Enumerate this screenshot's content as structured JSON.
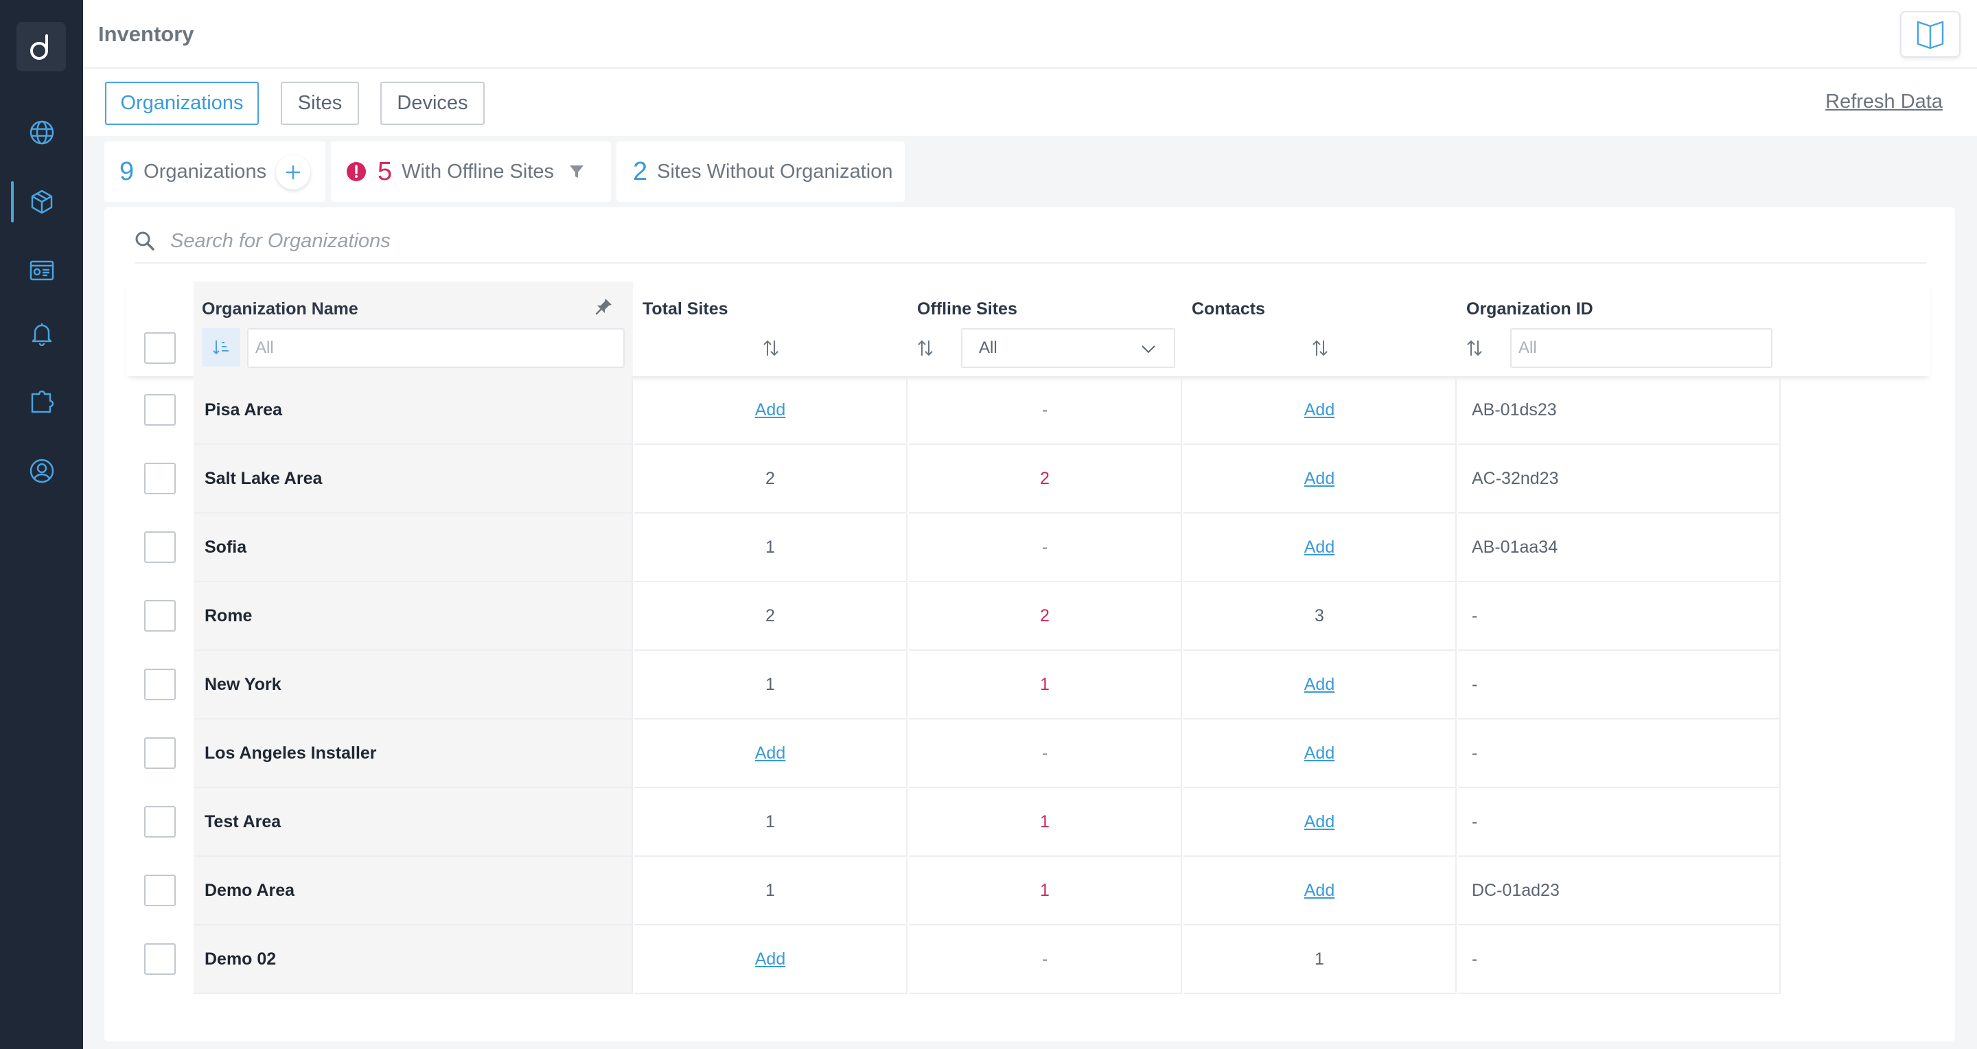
{
  "app": {
    "title": "Inventory",
    "logo_icon": "dashboard-logo-icon"
  },
  "sidebar": {
    "items": [
      {
        "name": "globe",
        "icon": "globe-icon"
      },
      {
        "name": "inventory",
        "icon": "cube-icon",
        "active": true
      },
      {
        "name": "reports",
        "icon": "report-card-icon"
      },
      {
        "name": "alerts",
        "icon": "bell-icon"
      },
      {
        "name": "integrations",
        "icon": "puzzle-icon"
      },
      {
        "name": "profile",
        "icon": "user-icon"
      }
    ]
  },
  "tabs": {
    "organizations": "Organizations",
    "sites": "Sites",
    "devices": "Devices",
    "active": "Organizations"
  },
  "refresh_label": "Refresh Data",
  "stats": {
    "organizations": {
      "count": "9",
      "label": "Organizations"
    },
    "offline": {
      "count": "5",
      "label": "With Offline Sites"
    },
    "no_org": {
      "count": "2",
      "label": "Sites Without Organization"
    }
  },
  "search": {
    "placeholder": "Search for Organizations"
  },
  "table": {
    "headers": {
      "name": "Organization Name",
      "total": "Total Sites",
      "offline": "Offline Sites",
      "contacts": "Contacts",
      "id": "Organization ID"
    },
    "filters": {
      "name_placeholder": "All",
      "offline_selected": "All",
      "id_placeholder": "All"
    },
    "rows": [
      {
        "name": "Pisa Area",
        "total": "Add",
        "offline": "-",
        "contacts": "Add",
        "id": "AB-01ds23"
      },
      {
        "name": "Salt Lake Area",
        "total": "2",
        "offline": "2",
        "contacts": "Add",
        "id": "AC-32nd23"
      },
      {
        "name": "Sofia",
        "total": "1",
        "offline": "-",
        "contacts": "Add",
        "id": "AB-01aa34"
      },
      {
        "name": "Rome",
        "total": "2",
        "offline": "2",
        "contacts": "3",
        "id": "-"
      },
      {
        "name": "New York",
        "total": "1",
        "offline": "1",
        "contacts": "Add",
        "id": "-"
      },
      {
        "name": "Los Angeles Installer",
        "total": "Add",
        "offline": "-",
        "contacts": "Add",
        "id": "-"
      },
      {
        "name": "Test Area",
        "total": "1",
        "offline": "1",
        "contacts": "Add",
        "id": "-"
      },
      {
        "name": "Demo Area",
        "total": "1",
        "offline": "1",
        "contacts": "Add",
        "id": "DC-01ad23"
      },
      {
        "name": "Demo 02",
        "total": "Add",
        "offline": "-",
        "contacts": "1",
        "id": "-"
      }
    ]
  },
  "colors": {
    "sidebar_bg": "#1e2836",
    "accent": "#3a9ad9",
    "alert": "#d3245f"
  }
}
